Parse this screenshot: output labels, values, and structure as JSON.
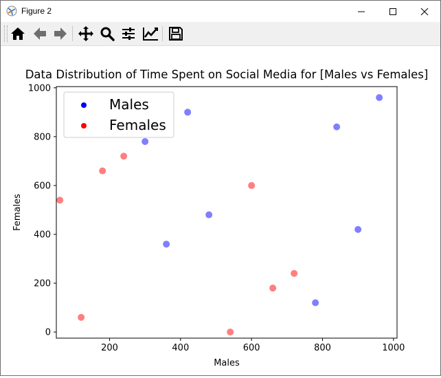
{
  "window": {
    "title": "Figure 2",
    "controls": [
      "minimize-icon",
      "maximize-icon",
      "close-icon"
    ]
  },
  "toolbar": {
    "buttons": [
      {
        "icon": "home-icon"
      },
      {
        "icon": "back-arrow-icon"
      },
      {
        "icon": "forward-arrow-icon"
      },
      {
        "icon": "pan-icon"
      },
      {
        "icon": "zoom-icon"
      },
      {
        "icon": "configure-subplots-icon"
      },
      {
        "icon": "edit-axis-icon"
      },
      {
        "icon": "save-icon"
      }
    ]
  },
  "chart_data": {
    "type": "scatter",
    "title": "Data Distribution of Time Spent on Social Media for [Males vs Females]",
    "xlabel": "Males",
    "ylabel": "Females",
    "xlim": [
      50,
      1010
    ],
    "ylim": [
      -25,
      1005
    ],
    "xticks": [
      200,
      400,
      600,
      800,
      1000
    ],
    "yticks": [
      0,
      200,
      400,
      600,
      800,
      1000
    ],
    "legend_position": "upper-left",
    "series": [
      {
        "name": "Males",
        "color": "#0000ff",
        "points": [
          [
            300,
            780
          ],
          [
            420,
            900
          ],
          [
            360,
            360
          ],
          [
            480,
            480
          ],
          [
            780,
            120
          ],
          [
            840,
            840
          ],
          [
            900,
            420
          ],
          [
            960,
            960
          ]
        ]
      },
      {
        "name": "Females",
        "color": "#ff0000",
        "points": [
          [
            60,
            540
          ],
          [
            120,
            60
          ],
          [
            180,
            660
          ],
          [
            240,
            720
          ],
          [
            540,
            0
          ],
          [
            600,
            600
          ],
          [
            660,
            180
          ],
          [
            720,
            240
          ]
        ]
      }
    ]
  }
}
